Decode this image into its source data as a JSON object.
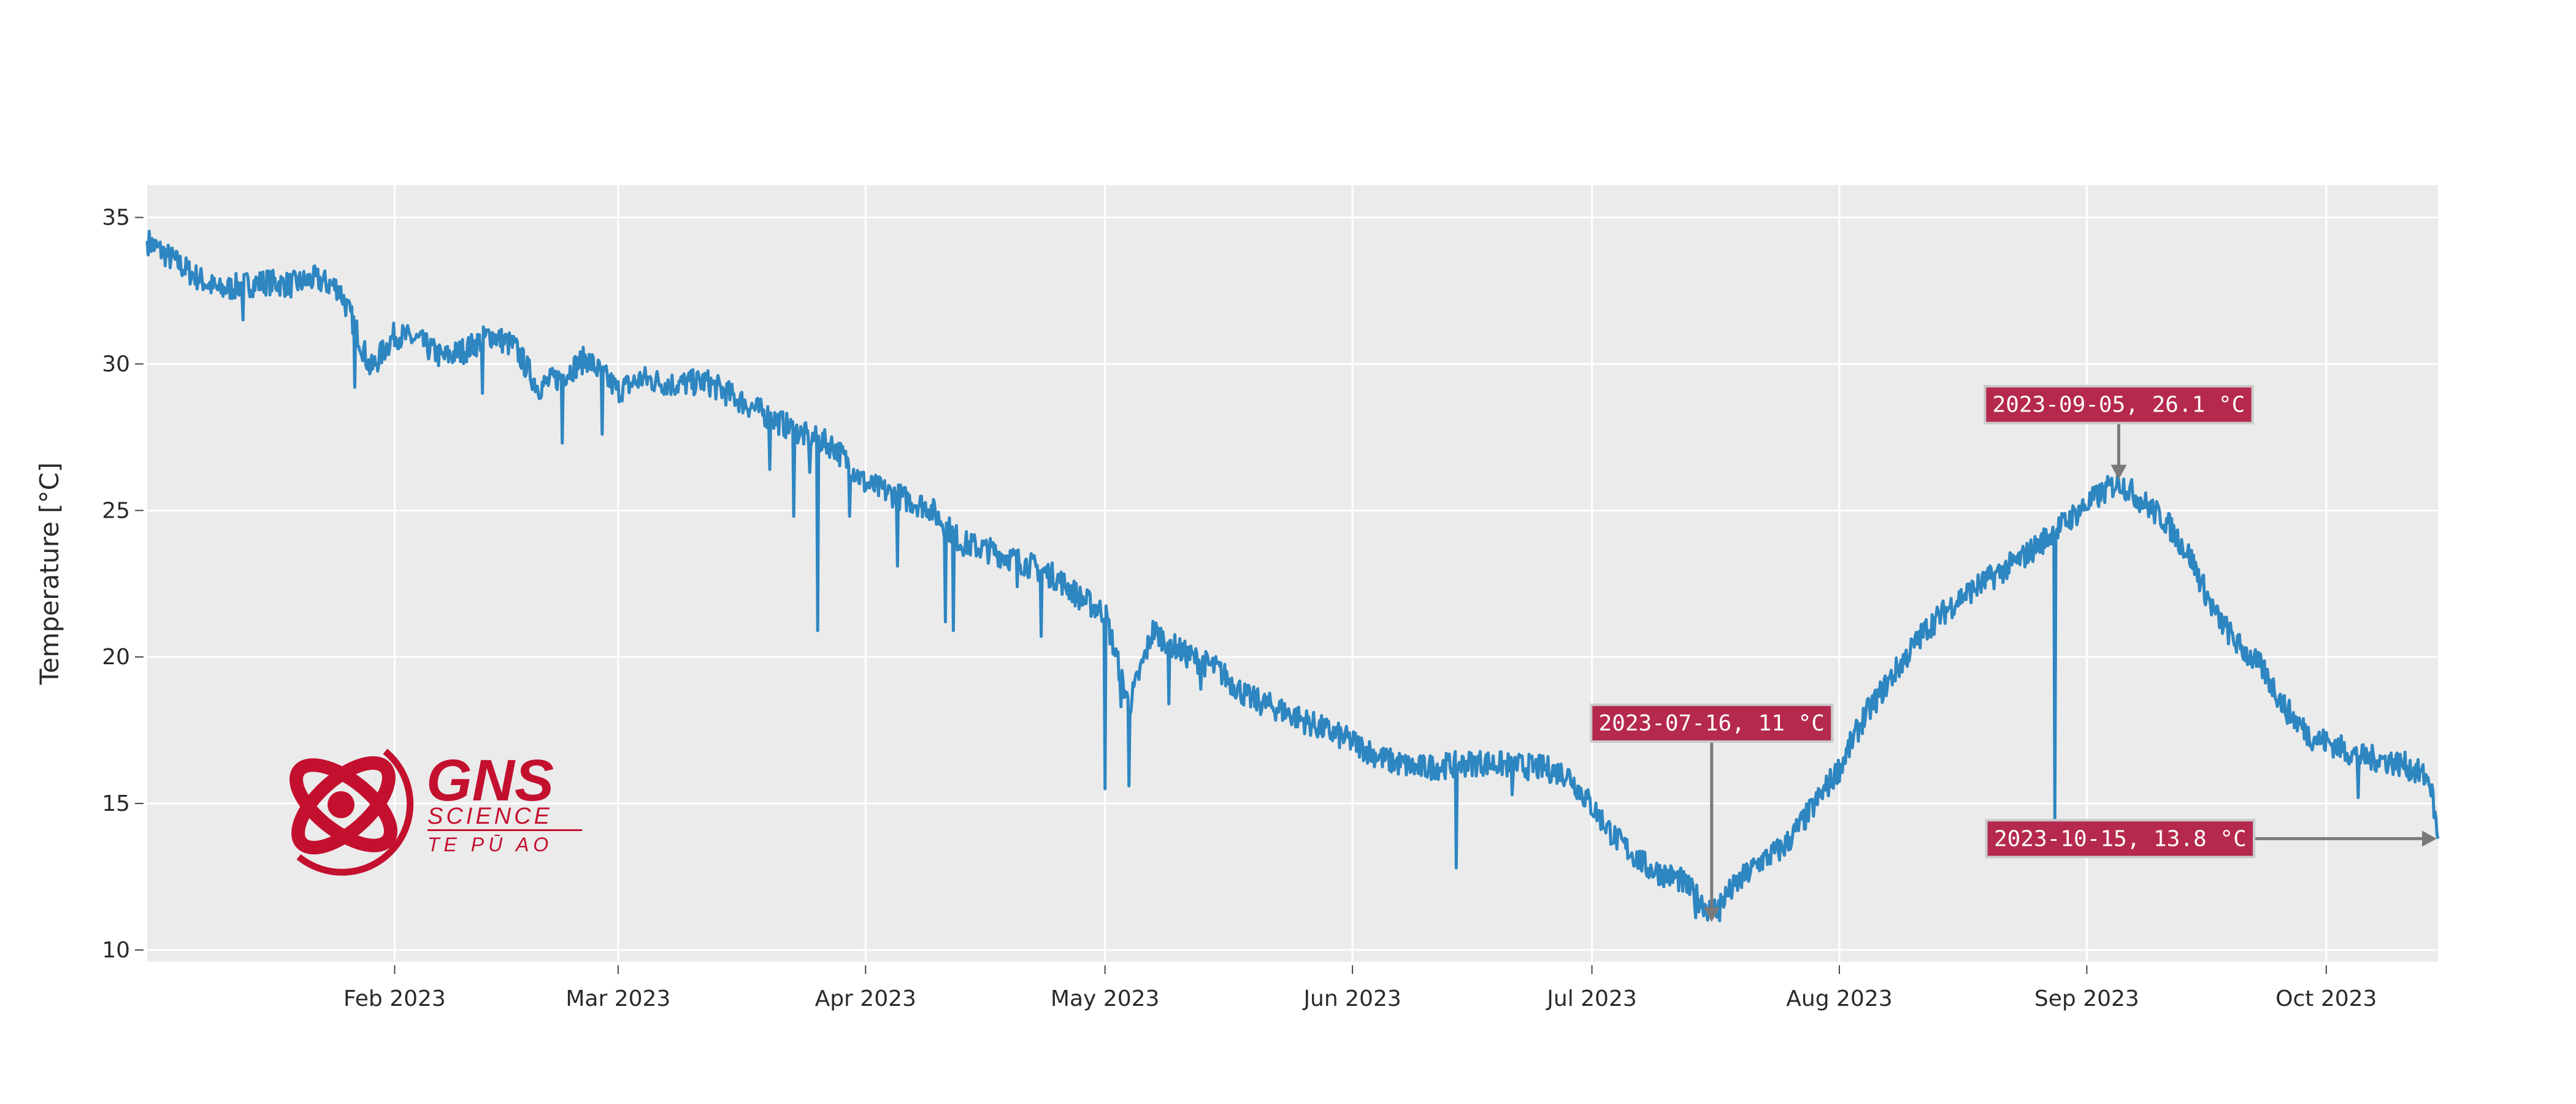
{
  "chart_data": {
    "type": "line",
    "title": "",
    "xlabel": "",
    "ylabel": "Temperature [°C]",
    "xlim": [
      "2023-01-01",
      "2023-10-15"
    ],
    "ylim": [
      9.6,
      36.1
    ],
    "grid": true,
    "legend": "none",
    "xticks": [
      {
        "date": "2023-02-01",
        "label": "Feb 2023"
      },
      {
        "date": "2023-03-01",
        "label": "Mar 2023"
      },
      {
        "date": "2023-04-01",
        "label": "Apr 2023"
      },
      {
        "date": "2023-05-01",
        "label": "May 2023"
      },
      {
        "date": "2023-06-01",
        "label": "Jun 2023"
      },
      {
        "date": "2023-07-01",
        "label": "Jul 2023"
      },
      {
        "date": "2023-08-01",
        "label": "Aug 2023"
      },
      {
        "date": "2023-09-01",
        "label": "Sep 2023"
      },
      {
        "date": "2023-10-01",
        "label": "Oct 2023"
      }
    ],
    "yticks": [
      {
        "value": 10,
        "label": "10"
      },
      {
        "value": 15,
        "label": "15"
      },
      {
        "value": 20,
        "label": "20"
      },
      {
        "value": 25,
        "label": "25"
      },
      {
        "value": 30,
        "label": "30"
      },
      {
        "value": 35,
        "label": "35"
      }
    ],
    "series": [
      {
        "color": "#2e86c1",
        "x": [
          "2023-01-01",
          "2023-01-04",
          "2023-01-07",
          "2023-01-10",
          "2023-01-13",
          "2023-01-16",
          "2023-01-19",
          "2023-01-22",
          "2023-01-25",
          "2023-01-27",
          "2023-01-29",
          "2023-02-01",
          "2023-02-04",
          "2023-02-07",
          "2023-02-10",
          "2023-02-13",
          "2023-02-16",
          "2023-02-19",
          "2023-02-22",
          "2023-02-25",
          "2023-03-01",
          "2023-03-04",
          "2023-03-08",
          "2023-03-12",
          "2023-03-16",
          "2023-03-20",
          "2023-03-24",
          "2023-03-28",
          "2023-04-01",
          "2023-04-05",
          "2023-04-09",
          "2023-04-13",
          "2023-04-17",
          "2023-04-21",
          "2023-04-25",
          "2023-04-28",
          "2023-05-01",
          "2023-05-04",
          "2023-05-07",
          "2023-05-11",
          "2023-05-15",
          "2023-05-19",
          "2023-05-23",
          "2023-05-27",
          "2023-06-01",
          "2023-06-05",
          "2023-06-09",
          "2023-06-13",
          "2023-06-17",
          "2023-06-21",
          "2023-06-25",
          "2023-06-28",
          "2023-07-01",
          "2023-07-04",
          "2023-07-08",
          "2023-07-12",
          "2023-07-16",
          "2023-07-19",
          "2023-07-22",
          "2023-07-25",
          "2023-07-28",
          "2023-08-01",
          "2023-08-04",
          "2023-08-08",
          "2023-08-12",
          "2023-08-16",
          "2023-08-20",
          "2023-08-24",
          "2023-08-28",
          "2023-09-01",
          "2023-09-05",
          "2023-09-08",
          "2023-09-11",
          "2023-09-14",
          "2023-09-17",
          "2023-09-20",
          "2023-09-23",
          "2023-09-26",
          "2023-09-29",
          "2023-10-02",
          "2023-10-05",
          "2023-10-08",
          "2023-10-11",
          "2023-10-14",
          "2023-10-15"
        ],
        "y": [
          34.2,
          33.6,
          33.0,
          32.5,
          32.7,
          32.8,
          32.7,
          32.9,
          32.6,
          31.3,
          29.8,
          31.0,
          30.8,
          30.2,
          30.5,
          31.0,
          30.6,
          29.2,
          29.6,
          30.2,
          29.1,
          29.5,
          29.3,
          29.4,
          28.8,
          28.2,
          27.6,
          27.2,
          25.9,
          25.5,
          25.1,
          23.9,
          23.6,
          23.2,
          22.7,
          22.0,
          21.5,
          18.3,
          20.9,
          20.1,
          19.6,
          18.6,
          18.2,
          17.7,
          17.1,
          16.5,
          16.2,
          16.3,
          16.4,
          16.3,
          16.2,
          16.0,
          14.9,
          13.8,
          12.8,
          12.4,
          11.3,
          12.2,
          13.0,
          13.5,
          14.6,
          16.2,
          17.9,
          19.5,
          21.0,
          22.0,
          22.7,
          23.4,
          24.3,
          25.2,
          26.0,
          25.3,
          24.6,
          23.4,
          21.5,
          20.4,
          19.6,
          18.2,
          17.3,
          17.0,
          16.6,
          16.5,
          16.3,
          15.8,
          13.8
        ],
        "dips": [
          {
            "x": "2023-01-13",
            "y": 31.5
          },
          {
            "x": "2023-01-27",
            "y": 29.2
          },
          {
            "x": "2023-02-12",
            "y": 29.0
          },
          {
            "x": "2023-02-22",
            "y": 27.3
          },
          {
            "x": "2023-02-27",
            "y": 27.6
          },
          {
            "x": "2023-03-20",
            "y": 26.4
          },
          {
            "x": "2023-03-23",
            "y": 24.8
          },
          {
            "x": "2023-03-25",
            "y": 26.3
          },
          {
            "x": "2023-03-26",
            "y": 20.9
          },
          {
            "x": "2023-03-30",
            "y": 24.8
          },
          {
            "x": "2023-04-05",
            "y": 23.1
          },
          {
            "x": "2023-04-11",
            "y": 21.2
          },
          {
            "x": "2023-04-12",
            "y": 20.9
          },
          {
            "x": "2023-04-20",
            "y": 22.4
          },
          {
            "x": "2023-04-23",
            "y": 20.7
          },
          {
            "x": "2023-05-01",
            "y": 15.5
          },
          {
            "x": "2023-05-03",
            "y": 18.3
          },
          {
            "x": "2023-05-04",
            "y": 15.6
          },
          {
            "x": "2023-05-09",
            "y": 18.4
          },
          {
            "x": "2023-05-13",
            "y": 18.9
          },
          {
            "x": "2023-06-14",
            "y": 12.8
          },
          {
            "x": "2023-06-21",
            "y": 15.3
          },
          {
            "x": "2023-07-14",
            "y": 11.1
          },
          {
            "x": "2023-07-17",
            "y": 11.0
          },
          {
            "x": "2023-08-28",
            "y": 14.5
          },
          {
            "x": "2023-10-05",
            "y": 15.2
          }
        ]
      }
    ],
    "annotations": [
      {
        "text": "2023-07-16, 11 °C",
        "x": "2023-07-16",
        "y": 11
      },
      {
        "text": "2023-09-05, 26.1 °C",
        "x": "2023-09-05",
        "y": 26.1
      },
      {
        "text": "2023-10-15, 13.8 °C",
        "x": "2023-10-15",
        "y": 13.8
      }
    ],
    "colors": {
      "line": "#2e86c1",
      "plot_bg": "#ebebeb",
      "grid": "#ffffff",
      "annotation_bg": "#b5294e",
      "annotation_border": "#c9c9c9",
      "arrow": "#7a7a7a",
      "logo": "#c4102f"
    }
  },
  "logo": {
    "wordmark": "GNS",
    "line2": "SCIENCE",
    "line3": "TE PŪ AO"
  }
}
